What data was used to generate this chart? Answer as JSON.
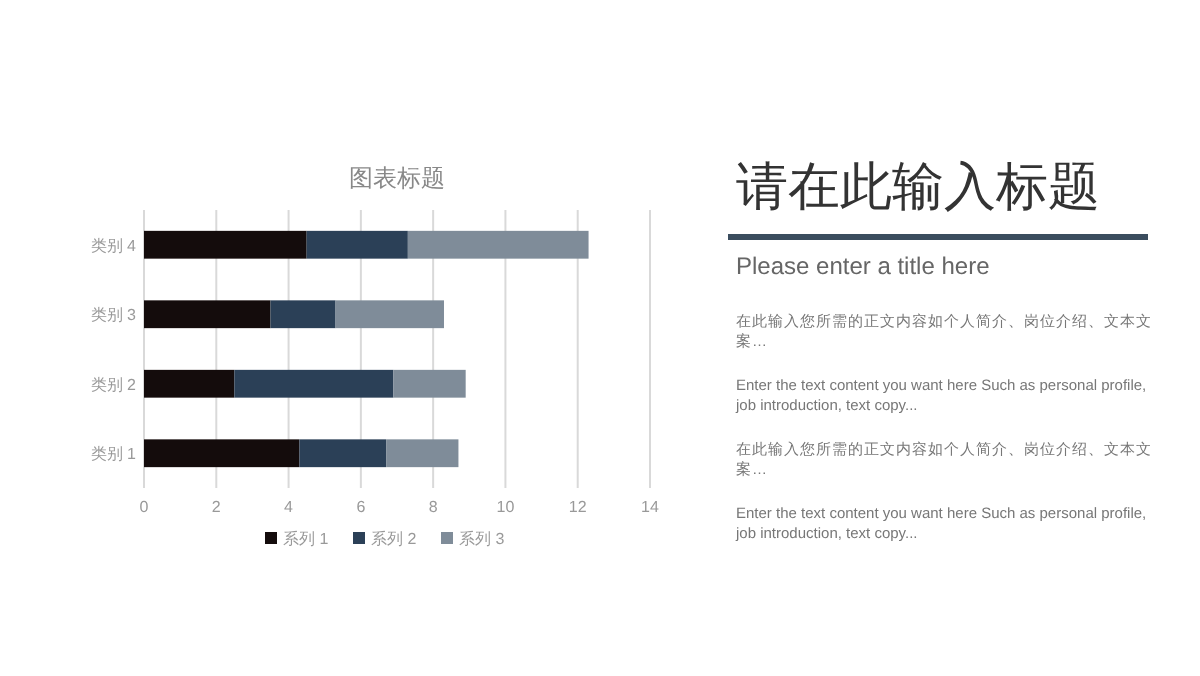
{
  "chart_data": [
    {
      "type": "bar",
      "orientation": "horizontal",
      "stacked": true,
      "title": "图表标题",
      "categories": [
        "类别 4",
        "类别 3",
        "类别 2",
        "类别 1"
      ],
      "series": [
        {
          "name": "系列 1",
          "color": "#140c0c",
          "values": [
            4.5,
            3.5,
            2.5,
            4.3
          ]
        },
        {
          "name": "系列 2",
          "color": "#2b4057",
          "values": [
            2.8,
            1.8,
            4.4,
            2.4
          ]
        },
        {
          "name": "系列 3",
          "color": "#7f8c99",
          "values": [
            5.0,
            3.0,
            2.0,
            2.0
          ]
        }
      ],
      "xlim": [
        0,
        14
      ],
      "xticks": [
        0,
        2,
        4,
        6,
        8,
        10,
        12,
        14
      ],
      "grid": "x",
      "legend": "bottom"
    },
    {
      "type": "other",
      "title": "请在此输入标题",
      "subtitle": "Please enter a title here",
      "annotations": [
        "在此输入您所需的正文内容如个人简介、岗位介绍、文本文案…",
        "Enter the text content you want here Such as personal profile, job introduction, text copy...",
        "在此输入您所需的正文内容如个人简介、岗位介绍、文本文案…",
        "Enter the text content you want here Such as personal profile, job introduction, text copy..."
      ]
    }
  ]
}
